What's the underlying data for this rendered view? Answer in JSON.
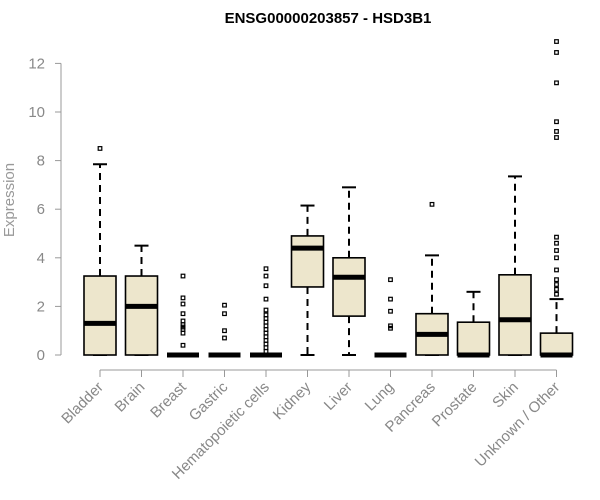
{
  "chart_data": {
    "type": "box",
    "title": "ENSG00000203857 - HSD3B1",
    "xlabel": "",
    "ylabel": "Expression",
    "ylim": [
      0,
      12.5
    ],
    "yticks": [
      "0",
      "2",
      "4",
      "6",
      "8",
      "10",
      "12"
    ],
    "box_fill": "#ede6cc",
    "categories": [
      "Bladder",
      "Brain",
      "Breast",
      "Gastric",
      "Hematopoietic cells",
      "Kidney",
      "Liver",
      "Lung",
      "Pancreas",
      "Prostate",
      "Skin",
      "Unknown / Other"
    ],
    "boxes": [
      {
        "q1": 0,
        "median": 1.3,
        "q3": 3.25,
        "whisker_low": 0,
        "whisker_high": 7.85,
        "outliers": [
          8.5
        ]
      },
      {
        "q1": 0,
        "median": 2.0,
        "q3": 3.25,
        "whisker_low": 0,
        "whisker_high": 4.5,
        "outliers": []
      },
      {
        "q1": 0,
        "median": 0,
        "q3": 0,
        "whisker_low": 0,
        "whisker_high": 0,
        "outliers": [
          0.4,
          0.9,
          1.05,
          1.15,
          1.25,
          1.4,
          1.7,
          2.1,
          2.35,
          3.25
        ]
      },
      {
        "q1": 0,
        "median": 0,
        "q3": 0,
        "whisker_low": 0,
        "whisker_high": 0,
        "outliers": [
          0.7,
          1.0,
          1.7,
          2.05
        ]
      },
      {
        "q1": 0,
        "median": 0,
        "q3": 0,
        "whisker_low": 0,
        "whisker_high": 0,
        "outliers": [
          0.15,
          0.3,
          0.45,
          0.6,
          0.75,
          0.9,
          1.05,
          1.2,
          1.35,
          1.5,
          1.65,
          1.85,
          2.3,
          2.85,
          3.25,
          3.55
        ]
      },
      {
        "q1": 2.8,
        "median": 4.4,
        "q3": 4.9,
        "whisker_low": 0,
        "whisker_high": 6.15,
        "outliers": []
      },
      {
        "q1": 1.6,
        "median": 3.2,
        "q3": 4.0,
        "whisker_low": 0,
        "whisker_high": 6.9,
        "outliers": []
      },
      {
        "q1": 0,
        "median": 0,
        "q3": 0,
        "whisker_low": 0,
        "whisker_high": 0,
        "outliers": [
          1.1,
          1.2,
          1.8,
          2.3,
          3.1
        ]
      },
      {
        "q1": 0,
        "median": 0.85,
        "q3": 1.7,
        "whisker_low": 0,
        "whisker_high": 4.1,
        "outliers": [
          6.2
        ]
      },
      {
        "q1": 0,
        "median": 0,
        "q3": 1.35,
        "whisker_low": 0,
        "whisker_high": 2.6,
        "outliers": []
      },
      {
        "q1": 0,
        "median": 1.45,
        "q3": 3.3,
        "whisker_low": 0,
        "whisker_high": 7.35,
        "outliers": []
      },
      {
        "q1": 0,
        "median": 0,
        "q3": 0.9,
        "whisker_low": 0,
        "whisker_high": 2.3,
        "outliers": [
          2.5,
          2.7,
          2.9,
          3.1,
          3.5,
          4.0,
          4.3,
          4.6,
          4.85,
          8.95,
          9.2,
          9.6,
          11.2,
          12.45,
          12.9
        ]
      }
    ]
  }
}
